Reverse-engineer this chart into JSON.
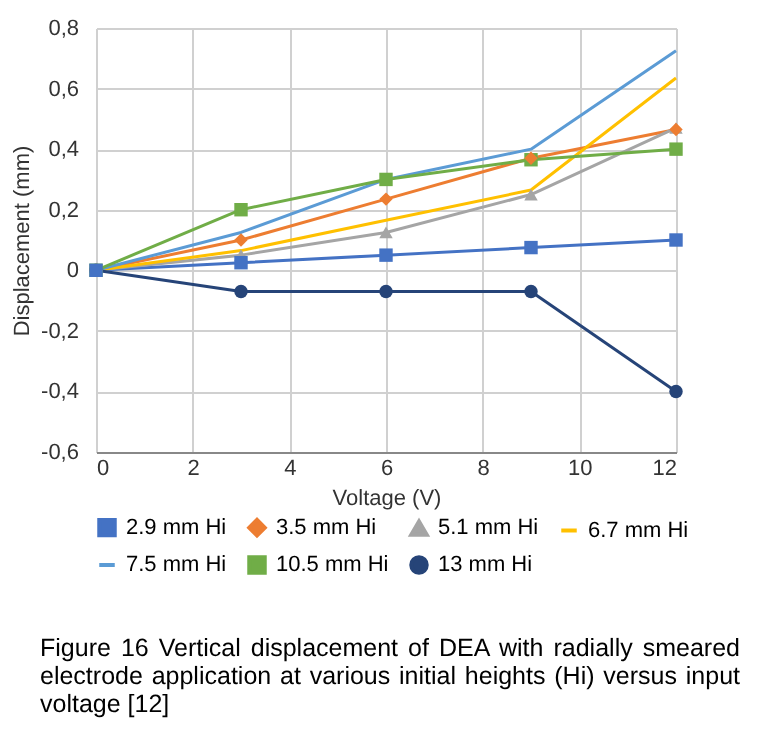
{
  "chart_data": {
    "type": "line",
    "title": "Figure 16  Vertical displacement of DEA with radially smeared electrode application at various initial heights (Hi) versus input voltage [12]",
    "xlabel": "Voltage (V)",
    "ylabel": "Displacement (mm)",
    "x": [
      0,
      3,
      6,
      9,
      12
    ],
    "series": [
      {
        "name": "2.9 mm Hi",
        "color": "#4472c4",
        "marker": "square",
        "values": [
          0,
          0.025,
          0.05,
          0.075,
          0.1
        ]
      },
      {
        "name": "3.5 mm Hi",
        "color": "#ed7d31",
        "marker": "diamond",
        "values": [
          0,
          0.1,
          0.235,
          0.37,
          0.465
        ]
      },
      {
        "name": "5.1 mm Hi",
        "color": "#a5a5a5",
        "marker": "triangle",
        "values": [
          0,
          0.05,
          0.125,
          0.25,
          0.47
        ]
      },
      {
        "name": "6.7 mm Hi",
        "color": "#ffc000",
        "marker": "none",
        "values": [
          0,
          0.065,
          0.165,
          0.265,
          0.635
        ]
      },
      {
        "name": "7.5 mm Hi",
        "color": "#5b9bd5",
        "marker": "none",
        "values": [
          0,
          0.125,
          0.3,
          0.4,
          0.725
        ]
      },
      {
        "name": "10.5 mm Hi",
        "color": "#70ad47",
        "marker": "square",
        "values": [
          0,
          0.2,
          0.3,
          0.365,
          0.4
        ]
      },
      {
        "name": "13 mm Hi",
        "color": "#264478",
        "marker": "circle",
        "values": [
          0,
          -0.07,
          -0.07,
          -0.07,
          -0.4
        ]
      }
    ],
    "xlim": [
      0,
      12
    ],
    "xticks": [
      0,
      2,
      4,
      6,
      8,
      10,
      12
    ],
    "ylim": [
      -0.6,
      0.8
    ],
    "yticks": [
      {
        "value": -0.6,
        "label": "-0,6"
      },
      {
        "value": -0.4,
        "label": "-0,4"
      },
      {
        "value": -0.2,
        "label": "-0,2"
      },
      0,
      {
        "value": 0.2,
        "label": "0,2"
      },
      {
        "value": 0.4,
        "label": "0,4"
      },
      {
        "value": 0.6,
        "label": "0,6"
      },
      {
        "value": 0.8,
        "label": "0,8"
      }
    ],
    "grid": true,
    "legend": "bottom",
    "line_style": "solid"
  }
}
